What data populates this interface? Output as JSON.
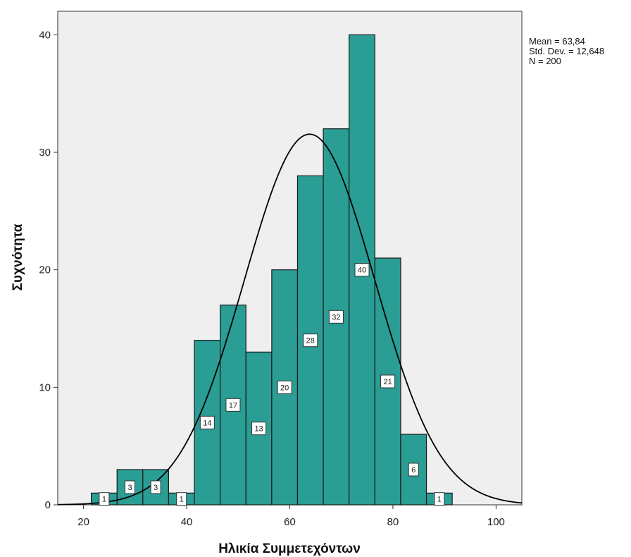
{
  "chart_data": {
    "type": "bar",
    "subtype": "histogram",
    "xlabel": "Ηλικία Συμμετεχόντων",
    "ylabel": "Συχνότητα",
    "xlim": [
      15,
      105
    ],
    "ylim": [
      0,
      42
    ],
    "xticks": [
      20,
      40,
      60,
      80,
      100
    ],
    "yticks": [
      0,
      10,
      20,
      30,
      40
    ],
    "bin_width": 5,
    "bins": [
      {
        "start": 21.5,
        "end": 26.5,
        "value": 1
      },
      {
        "start": 26.5,
        "end": 31.5,
        "value": 3
      },
      {
        "start": 31.5,
        "end": 36.5,
        "value": 3
      },
      {
        "start": 36.5,
        "end": 41.5,
        "value": 1
      },
      {
        "start": 41.5,
        "end": 46.5,
        "value": 14
      },
      {
        "start": 46.5,
        "end": 51.5,
        "value": 17
      },
      {
        "start": 51.5,
        "end": 56.5,
        "value": 13
      },
      {
        "start": 56.5,
        "end": 61.5,
        "value": 20
      },
      {
        "start": 61.5,
        "end": 66.5,
        "value": 28
      },
      {
        "start": 66.5,
        "end": 71.5,
        "value": 32
      },
      {
        "start": 71.5,
        "end": 76.5,
        "value": 40
      },
      {
        "start": 76.5,
        "end": 81.5,
        "value": 21
      },
      {
        "start": 81.5,
        "end": 86.5,
        "value": 6
      },
      {
        "start": 86.5,
        "end": 91.5,
        "value": 1
      }
    ],
    "normal_curve": {
      "mean": 63.84,
      "sd": 12.648,
      "n": 200
    },
    "stats": {
      "mean": "Mean = 63,84",
      "std": "Std. Dev. = 12,648",
      "n": "N = 200"
    },
    "grid": false,
    "colors": {
      "bar_fill": "#2a9d94",
      "bar_stroke": "#1a1a1a",
      "plot_background": "#efefef",
      "curve": "#000000"
    }
  }
}
